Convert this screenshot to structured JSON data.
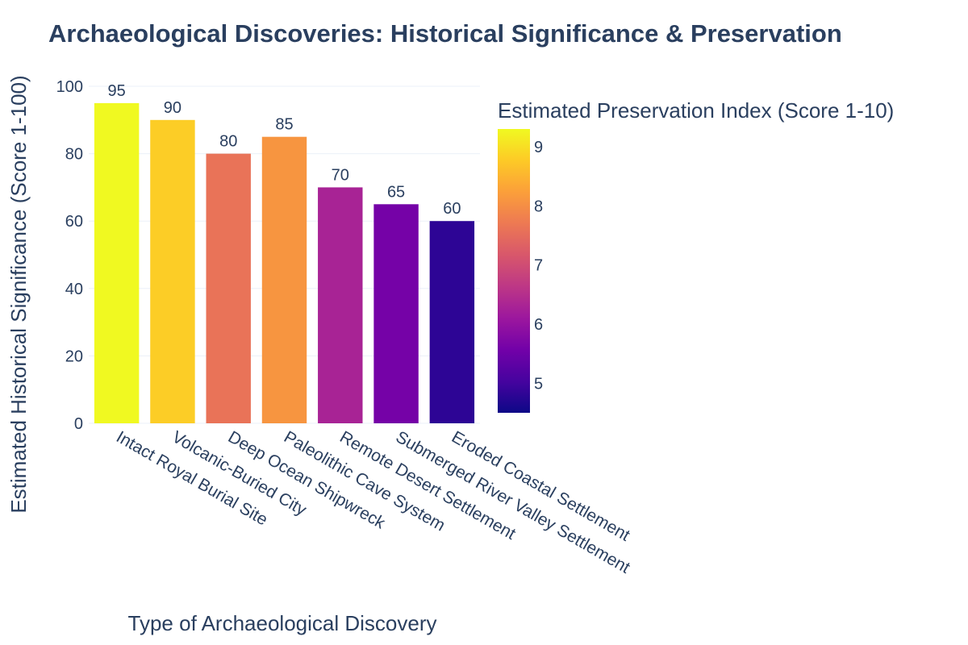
{
  "chart_data": {
    "type": "bar",
    "title": "Archaeological Discoveries: Historical Significance & Preservation",
    "xlabel": "Type of Archaeological Discovery",
    "ylabel": "Estimated Historical Significance (Score 1-100)",
    "ylim": [
      0,
      100
    ],
    "yticks": [
      0,
      20,
      40,
      60,
      80,
      100
    ],
    "grid": true,
    "categories": [
      "Intact Royal Burial Site",
      "Volcanic-Buried City",
      "Deep Ocean Shipwreck",
      "Paleolithic Cave System",
      "Remote Desert Settlement",
      "Submerged River Valley Settlement",
      "Eroded Coastal Settlement"
    ],
    "values": [
      95,
      90,
      80,
      85,
      70,
      65,
      60
    ],
    "preservation_index": [
      9.3,
      8.8,
      7.6,
      8.1,
      6.3,
      5.6,
      4.8
    ],
    "colorbar": {
      "title": "Estimated Preservation Index (Score 1-10)",
      "range": [
        4.5,
        9.3
      ],
      "ticks": [
        5,
        6,
        7,
        8,
        9
      ],
      "colorscale": "Plasma",
      "placement": "right"
    }
  }
}
